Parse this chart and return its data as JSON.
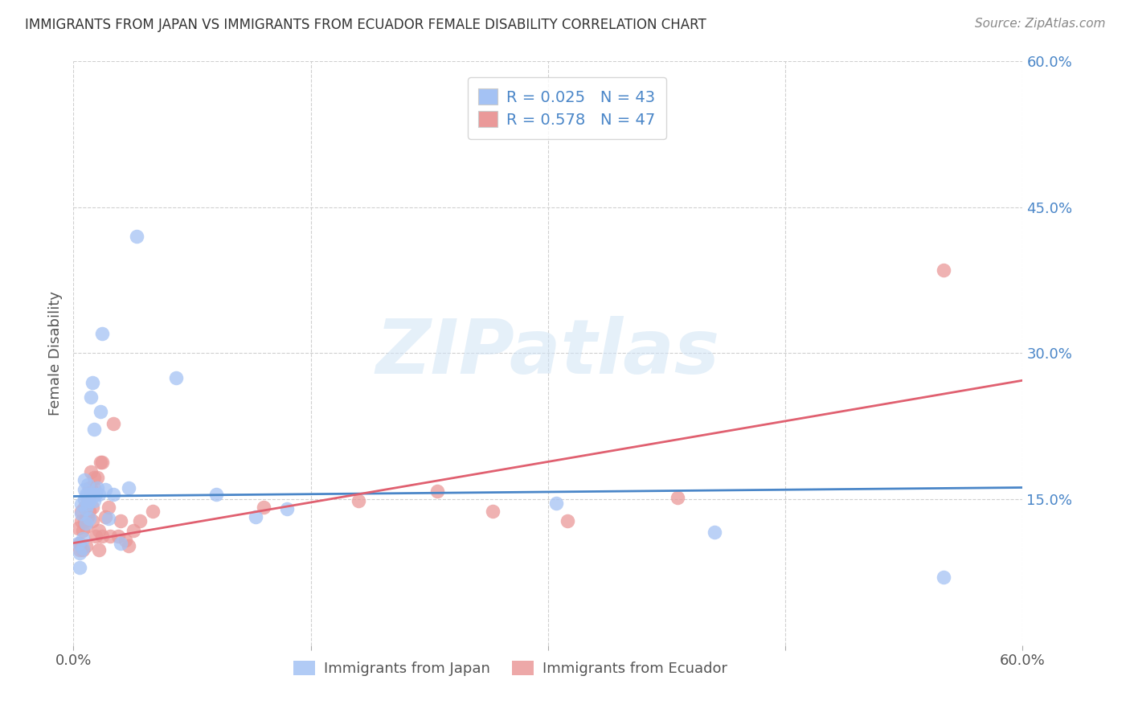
{
  "title": "IMMIGRANTS FROM JAPAN VS IMMIGRANTS FROM ECUADOR FEMALE DISABILITY CORRELATION CHART",
  "source": "Source: ZipAtlas.com",
  "ylabel": "Female Disability",
  "xlim": [
    0.0,
    0.6
  ],
  "ylim": [
    0.0,
    0.6
  ],
  "ytick_positions": [
    0.15,
    0.3,
    0.45,
    0.6
  ],
  "ytick_labels": [
    "15.0%",
    "30.0%",
    "45.0%",
    "60.0%"
  ],
  "xtick_positions": [
    0.0,
    0.15,
    0.3,
    0.45,
    0.6
  ],
  "xtick_labels": [
    "0.0%",
    "",
    "",
    "",
    "60.0%"
  ],
  "legend_japan_R": "0.025",
  "legend_japan_N": "43",
  "legend_ecuador_R": "0.578",
  "legend_ecuador_N": "47",
  "japan_color": "#a4c2f4",
  "ecuador_color": "#ea9999",
  "japan_line_color": "#4a86c8",
  "ecuador_line_color": "#e06070",
  "text_color": "#4a86c8",
  "background_color": "#ffffff",
  "japan_x": [
    0.003,
    0.004,
    0.004,
    0.005,
    0.005,
    0.006,
    0.006,
    0.007,
    0.007,
    0.007,
    0.008,
    0.008,
    0.008,
    0.009,
    0.009,
    0.009,
    0.01,
    0.01,
    0.01,
    0.011,
    0.011,
    0.012,
    0.012,
    0.013,
    0.013,
    0.014,
    0.015,
    0.016,
    0.017,
    0.018,
    0.02,
    0.022,
    0.025,
    0.03,
    0.035,
    0.04,
    0.065,
    0.09,
    0.115,
    0.135,
    0.305,
    0.405,
    0.55
  ],
  "japan_y": [
    0.105,
    0.095,
    0.08,
    0.135,
    0.145,
    0.1,
    0.11,
    0.15,
    0.16,
    0.17,
    0.125,
    0.14,
    0.155,
    0.145,
    0.155,
    0.165,
    0.13,
    0.148,
    0.155,
    0.15,
    0.255,
    0.155,
    0.27,
    0.148,
    0.222,
    0.155,
    0.162,
    0.155,
    0.24,
    0.32,
    0.16,
    0.13,
    0.155,
    0.105,
    0.162,
    0.42,
    0.275,
    0.155,
    0.132,
    0.14,
    0.146,
    0.116,
    0.07
  ],
  "ecuador_x": [
    0.003,
    0.004,
    0.004,
    0.005,
    0.005,
    0.006,
    0.006,
    0.007,
    0.007,
    0.008,
    0.008,
    0.009,
    0.009,
    0.01,
    0.01,
    0.01,
    0.011,
    0.011,
    0.012,
    0.012,
    0.013,
    0.013,
    0.014,
    0.015,
    0.016,
    0.016,
    0.017,
    0.018,
    0.018,
    0.02,
    0.022,
    0.023,
    0.025,
    0.028,
    0.03,
    0.033,
    0.035,
    0.038,
    0.042,
    0.05,
    0.12,
    0.18,
    0.23,
    0.265,
    0.312,
    0.382,
    0.55
  ],
  "ecuador_y": [
    0.12,
    0.098,
    0.105,
    0.128,
    0.138,
    0.098,
    0.118,
    0.142,
    0.128,
    0.122,
    0.102,
    0.132,
    0.148,
    0.138,
    0.152,
    0.162,
    0.162,
    0.178,
    0.142,
    0.128,
    0.172,
    0.162,
    0.112,
    0.172,
    0.098,
    0.118,
    0.188,
    0.188,
    0.112,
    0.132,
    0.142,
    0.112,
    0.228,
    0.112,
    0.128,
    0.108,
    0.102,
    0.118,
    0.128,
    0.138,
    0.142,
    0.148,
    0.158,
    0.138,
    0.128,
    0.152,
    0.385
  ],
  "japan_trend_x": [
    0.0,
    0.6
  ],
  "japan_trend_y": [
    0.153,
    0.162
  ],
  "ecuador_trend_x": [
    0.0,
    0.6
  ],
  "ecuador_trend_y": [
    0.105,
    0.272
  ],
  "watermark": "ZIPatlas",
  "watermark_color": "#d0e4f5"
}
